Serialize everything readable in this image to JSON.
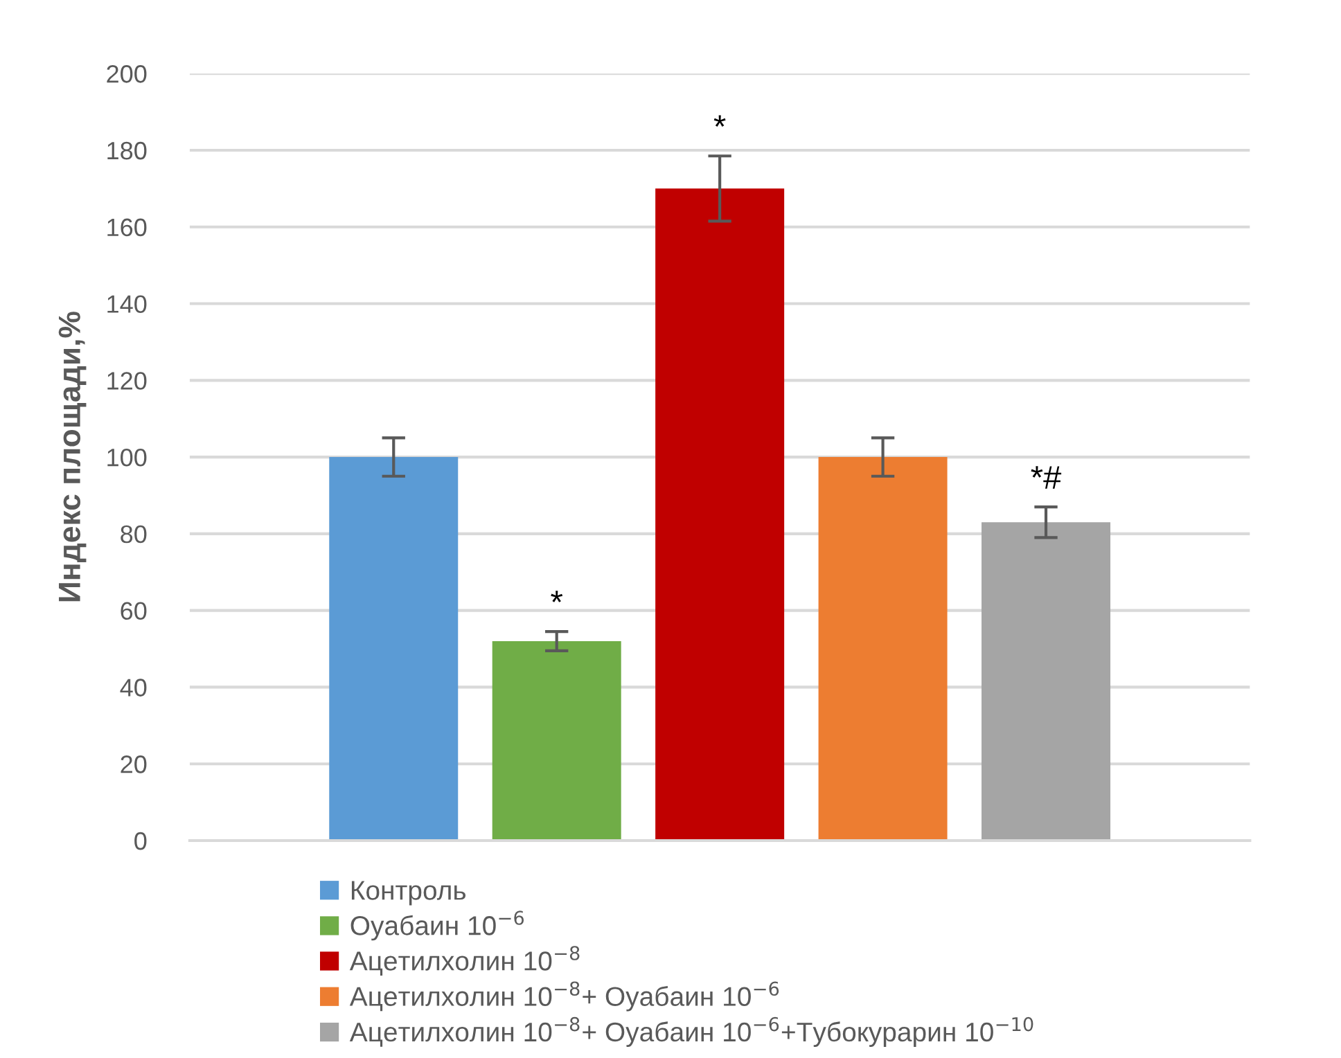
{
  "chart_data": {
    "type": "bar",
    "ylabel": "Индекс площади,%",
    "categories": [
      null
    ],
    "series": [
      {
        "name": "Контроль",
        "color": "#5b9bd5",
        "values": [
          100
        ],
        "errors": [
          5
        ]
      },
      {
        "name": "Оуабаин 10$^{−6}$",
        "color": "#70ad47",
        "values": [
          52
        ],
        "errors": [
          2.5
        ]
      },
      {
        "name": "Ацетилхолин 10$^{−8}$",
        "color": "#c00000",
        "values": [
          170
        ],
        "errors": [
          8.5
        ]
      },
      {
        "name": "Ацетилхолин 10$^{−8}$+ Оуабаин 10$^{−6}$",
        "color": "#ed7d31",
        "values": [
          100
        ],
        "errors": [
          5
        ]
      },
      {
        "name": "Ацетилхолин 10$^{−8}$+ Оуабаин 10$^{−6}$+Тубокурарин 10$^{−10}$",
        "color": "#a5a5a5",
        "values": [
          83
        ],
        "errors": [
          4
        ]
      }
    ],
    "annotations": [
      "*",
      "*",
      "*#"
    ],
    "ylim": [
      0,
      200
    ],
    "yticks": [
      0,
      20,
      40,
      60,
      80,
      100,
      120,
      140,
      160,
      180,
      200
    ],
    "grid": "y",
    "legend": "bottom"
  }
}
